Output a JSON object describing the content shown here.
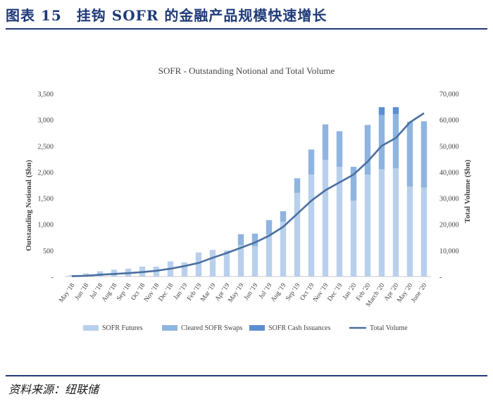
{
  "figure_title": "图表 15　挂钩 SOFR 的金融产品规模快速增长",
  "source": "资料来源：纽联储",
  "colors": {
    "futures": "#b9d0ec",
    "swaps": "#8fb4e0",
    "cash": "#5b8fd0",
    "volume": "#4a6fa0",
    "title_blue": "#1f3a78"
  },
  "chart_data": {
    "type": "bar",
    "title": "SOFR - Outstanding Notional and Total Volume",
    "ylabel": "Outstanding Notional ($bn)",
    "y2label": "Total Volume ($bn)",
    "ylim": [
      0,
      3500
    ],
    "y2lim": [
      0,
      70000
    ],
    "yticks": [
      "3,500",
      "3,000",
      "2,500",
      "2,000",
      "1,500",
      "1,000",
      "500",
      "-"
    ],
    "y2ticks": [
      "70,000",
      "60,000",
      "50,000",
      "40,000",
      "30,000",
      "20,000",
      "10,000",
      "-"
    ],
    "categories": [
      "May '18",
      "Jun '18",
      "Jul '18",
      "Aug '18",
      "Sep '18",
      "Oct '18",
      "Nov '18",
      "Dec '18",
      "Jan '19",
      "Feb '19",
      "Mar '19",
      "Apr '19",
      "May '19",
      "Jun '19",
      "Jul '19",
      "Aug '19",
      "Sep '19",
      "Oct '19",
      "Nov '19",
      "Dec '19",
      "Jan '20",
      "Feb '20",
      "March '20",
      "Apr '20",
      "May '20",
      "June '20"
    ],
    "legend_position": "bottom",
    "series": [
      {
        "name": "SOFR Futures",
        "kind": "bar",
        "values": [
          30,
          60,
          100,
          130,
          150,
          190,
          190,
          290,
          270,
          460,
          510,
          500,
          600,
          580,
          800,
          1050,
          1600,
          1950,
          2230,
          2100,
          1450,
          1950,
          2050,
          2070,
          1720,
          1700
        ]
      },
      {
        "name": "Cleared SOFR Swaps",
        "kind": "bar",
        "values": [
          0,
          0,
          0,
          0,
          0,
          0,
          0,
          0,
          0,
          0,
          0,
          0,
          210,
          240,
          280,
          200,
          280,
          480,
          680,
          680,
          650,
          950,
          1040,
          1040,
          1240,
          1270
        ]
      },
      {
        "name": "SOFR Cash Issuances",
        "kind": "bar",
        "values": [
          0,
          0,
          0,
          0,
          0,
          0,
          0,
          0,
          0,
          0,
          0,
          0,
          0,
          0,
          0,
          0,
          0,
          0,
          0,
          0,
          0,
          0,
          150,
          130,
          0,
          0
        ]
      },
      {
        "name": "Total Volume",
        "kind": "line",
        "axis": "right",
        "values": [
          100,
          300,
          700,
          1000,
          1300,
          1700,
          2200,
          3000,
          4000,
          5200,
          7200,
          9000,
          11000,
          13000,
          15600,
          19000,
          24000,
          29000,
          33000,
          36000,
          39000,
          44000,
          50000,
          53000,
          59000,
          62500
        ]
      }
    ]
  }
}
